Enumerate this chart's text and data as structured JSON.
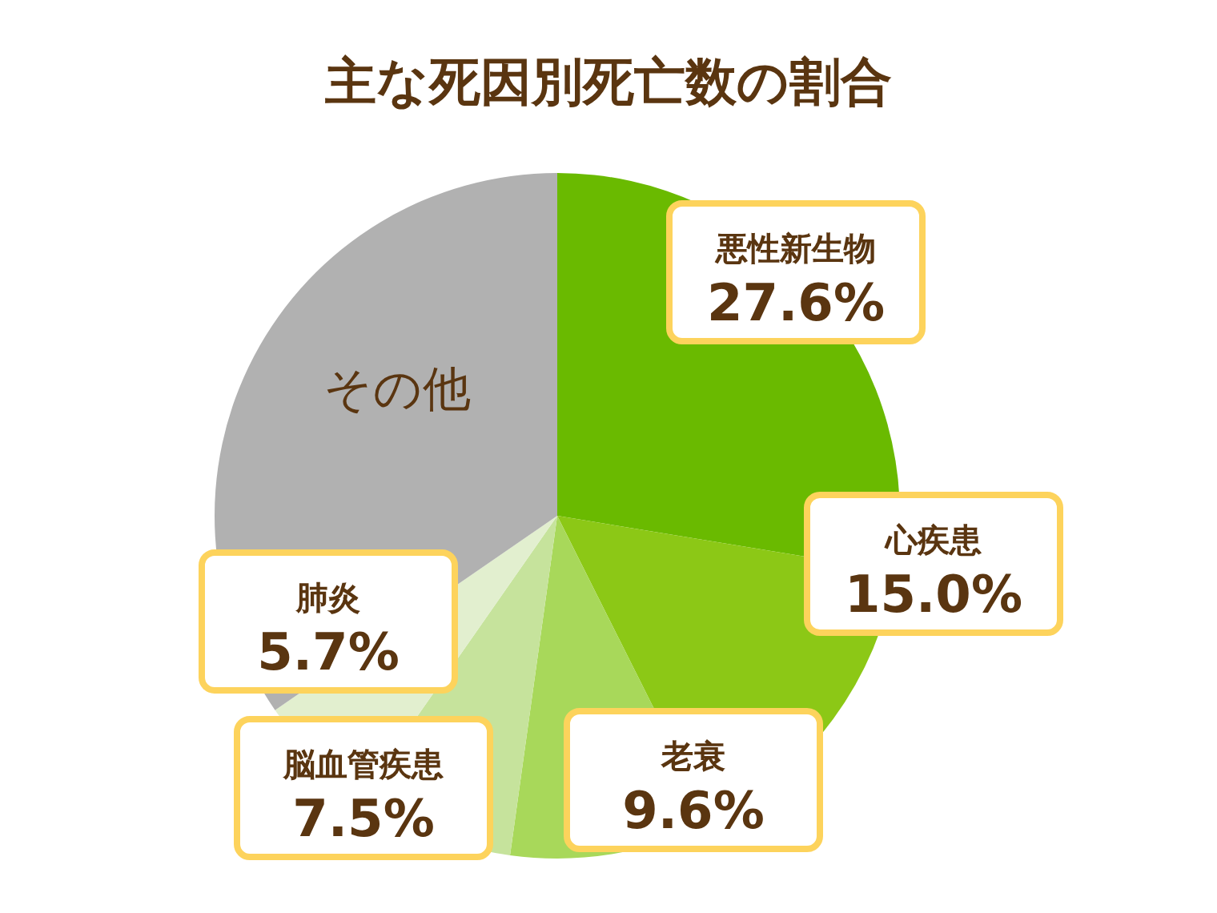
{
  "chart_data": {
    "type": "pie",
    "title": "主な死因別死亡数の割合",
    "categories": [
      "悪性新生物",
      "心疾患",
      "老衰",
      "脳血管疾患",
      "肺炎",
      "その他"
    ],
    "values": [
      27.6,
      15.0,
      9.6,
      7.5,
      5.7,
      34.6
    ],
    "colors": [
      "#6aba00",
      "#8cc816",
      "#a8d85a",
      "#c6e39c",
      "#e2efcf",
      "#b1b1b1"
    ],
    "value_labels": [
      "27.6%",
      "15.0%",
      "9.6%",
      "7.5%",
      "5.7%",
      null
    ]
  }
}
